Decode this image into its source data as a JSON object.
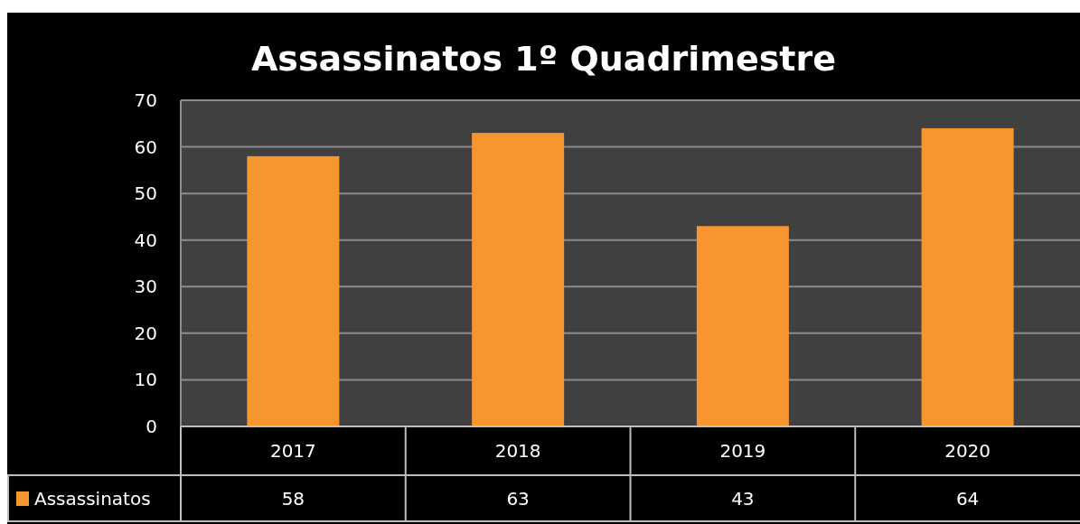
{
  "chart_data": {
    "type": "bar",
    "title": "Assassinatos 1º Quadrimestre",
    "categories": [
      "2017",
      "2018",
      "2019",
      "2020"
    ],
    "series": [
      {
        "name": "Assassinatos",
        "color": "#f7962e",
        "values": [
          58,
          63,
          43,
          64
        ]
      }
    ],
    "ylim": [
      0,
      70
    ],
    "yticks": [
      0,
      10,
      20,
      30,
      40,
      50,
      60,
      70
    ],
    "grid": "y",
    "legend": "bottom",
    "data_labels": true
  }
}
